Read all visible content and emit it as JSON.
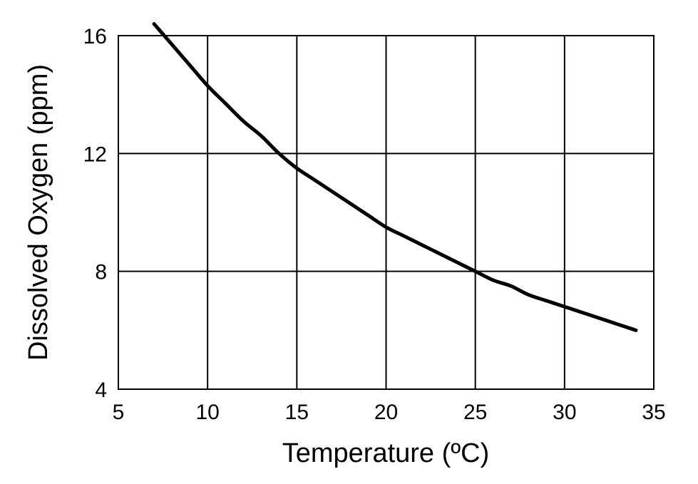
{
  "chart_data": {
    "type": "line",
    "xlabel": "Temperature (ºC)",
    "ylabel": "Dissolved Oxygen (ppm)",
    "xlim": [
      5,
      35
    ],
    "ylim": [
      4,
      16
    ],
    "xticks": [
      5,
      10,
      15,
      20,
      25,
      30,
      35
    ],
    "yticks": [
      4,
      8,
      12,
      16
    ],
    "grid": true,
    "series": [
      {
        "x": [
          7,
          8,
          9,
          10,
          11,
          12,
          13,
          14,
          15,
          16,
          17,
          18,
          19,
          20,
          21,
          22,
          23,
          24,
          25,
          26,
          27,
          28,
          29,
          30,
          31,
          32,
          33,
          34
        ],
        "y": [
          16.4,
          15.7,
          15.0,
          14.3,
          13.7,
          13.1,
          12.6,
          12.0,
          11.5,
          11.1,
          10.7,
          10.3,
          9.9,
          9.5,
          9.2,
          8.9,
          8.6,
          8.3,
          8.0,
          7.7,
          7.5,
          7.2,
          7.0,
          6.8,
          6.6,
          6.4,
          6.2,
          6.0
        ]
      }
    ]
  }
}
